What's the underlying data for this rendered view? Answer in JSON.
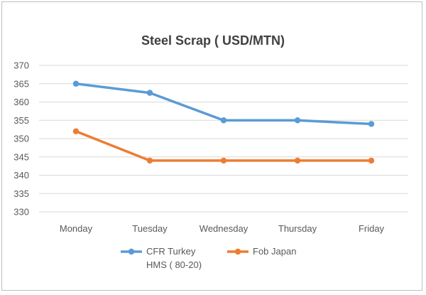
{
  "chart_data": {
    "type": "line",
    "title": "Steel Scrap ( USD/MTN)",
    "xlabel": "",
    "ylabel": "",
    "categories": [
      "Monday",
      "Tuesday",
      "Wednesday",
      "Thursday",
      "Friday"
    ],
    "series": [
      {
        "name": "CFR Turkey HMS ( 80-20)",
        "name_lines": [
          "CFR Turkey",
          "HMS ( 80-20)"
        ],
        "color": "#5b9bd5",
        "values": [
          365,
          362.5,
          355,
          355,
          354
        ]
      },
      {
        "name": "Fob Japan",
        "name_lines": [
          "Fob Japan"
        ],
        "color": "#ed7d31",
        "values": [
          352,
          344,
          344,
          344,
          344
        ]
      }
    ],
    "ylim": [
      330,
      370
    ],
    "yticks": [
      330,
      335,
      340,
      345,
      350,
      355,
      360,
      365,
      370
    ],
    "grid": true,
    "legend": "bottom",
    "gridline_color": "#d9d9d9"
  }
}
